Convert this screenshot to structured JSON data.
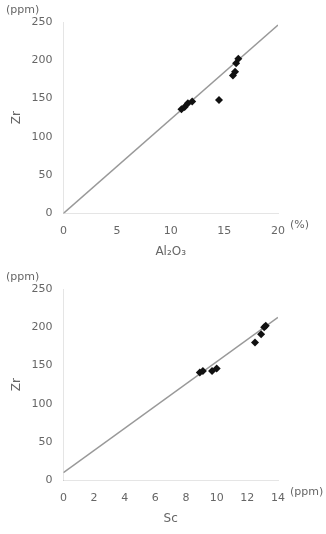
{
  "chart_data": [
    {
      "type": "scatter",
      "xlabel": "Al₂O₃",
      "ylabel": "Zr",
      "annotations": [
        "(ppm)",
        "(%)"
      ],
      "xlim": [
        0,
        20
      ],
      "ylim": [
        0,
        250
      ],
      "xticks": [
        0,
        5,
        10,
        15,
        20
      ],
      "yticks": [
        0,
        50,
        100,
        150,
        200,
        250
      ],
      "grid": false,
      "series": [
        {
          "type": "line",
          "color": "#999999",
          "x": [
            0,
            20
          ],
          "values": [
            0,
            246
          ]
        },
        {
          "type": "scatter",
          "color": "#111111",
          "marker": "diamond",
          "x": [
            11.0,
            11.3,
            11.6,
            12.0,
            14.5,
            15.8,
            16.0,
            16.1,
            16.3
          ],
          "values": [
            136,
            139,
            144,
            146,
            148,
            180,
            185,
            196,
            202
          ]
        }
      ]
    },
    {
      "type": "scatter",
      "xlabel": "Sc",
      "ylabel": "Zr",
      "annotations": [
        "(ppm)",
        "(ppm)"
      ],
      "xlim": [
        0,
        14
      ],
      "ylim": [
        0,
        250
      ],
      "xticks": [
        0,
        2,
        4,
        6,
        8,
        10,
        12,
        14
      ],
      "yticks": [
        0,
        50,
        100,
        150,
        200,
        250
      ],
      "grid": false,
      "series": [
        {
          "type": "line",
          "color": "#999999",
          "x": [
            0,
            14
          ],
          "values": [
            10,
            213
          ]
        },
        {
          "type": "scatter",
          "color": "#111111",
          "marker": "diamond",
          "x": [
            8.9,
            9.1,
            9.7,
            10.0,
            12.5,
            12.9,
            13.1,
            13.2
          ],
          "values": [
            141,
            143,
            143,
            146,
            180,
            191,
            200,
            202
          ]
        }
      ]
    }
  ]
}
